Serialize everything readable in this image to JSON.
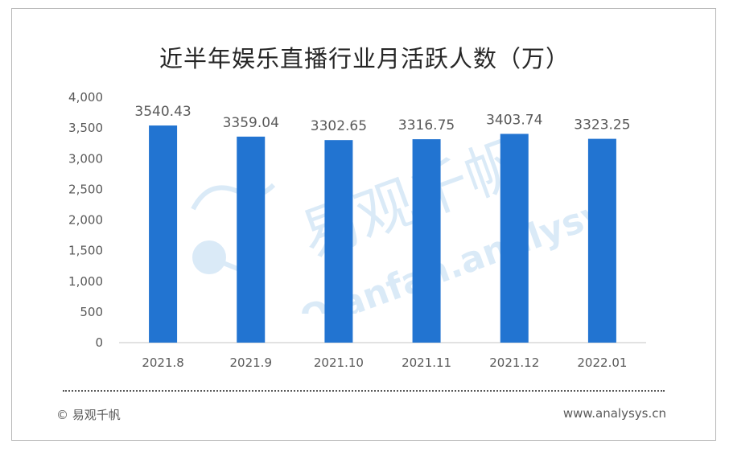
{
  "colors": {
    "bar": "#2274d1",
    "axis": "#d9d9d9",
    "text": "#595959",
    "title": "#262626",
    "watermark": "#3a8fd6"
  },
  "footer": {
    "source": "© 易观千帆",
    "website": "www.analysys.cn"
  },
  "watermark": {
    "text_cn": "易观千帆",
    "text_en": "Qianfan.analysys.cn"
  },
  "chart_data": {
    "type": "bar",
    "title": "近半年娱乐直播行业月活跃人数（万）",
    "categories": [
      "2021.8",
      "2021.9",
      "2021.10",
      "2021.11",
      "2021.12",
      "2022.01"
    ],
    "values": [
      3540.43,
      3359.04,
      3302.65,
      3316.75,
      3403.74,
      3323.25
    ],
    "value_labels": [
      "3540.43",
      "3359.04",
      "3302.65",
      "3316.75",
      "3403.74",
      "3323.25"
    ],
    "y_ticks": [
      "0",
      "500",
      "1,000",
      "1,500",
      "2,000",
      "2,500",
      "3,000",
      "3,500",
      "4,000"
    ],
    "ylim": [
      0,
      4000
    ],
    "grid": false,
    "legend": "none"
  }
}
